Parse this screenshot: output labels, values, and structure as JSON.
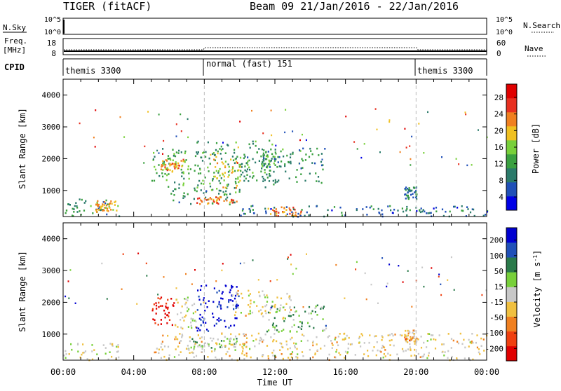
{
  "header": {
    "title": "TIGER (fitACF)",
    "beam_info": "Beam 09  21/Jan/2016 - 22/Jan/2016"
  },
  "panels": {
    "nsky": {
      "label": "N.Sky",
      "left_ticks": [
        "10^5",
        "10^0"
      ],
      "right_ticks": [
        "10^5",
        "10^0"
      ],
      "right_label": "N.Search"
    },
    "freq": {
      "label_line1": "Freq.",
      "label_line2": "[MHz]",
      "left_ticks": [
        "18",
        "8"
      ],
      "right_ticks": [
        "60",
        "0"
      ],
      "right_label": "Nave"
    },
    "cpid": {
      "label": "CPID",
      "segments": [
        {
          "text": "themis 3300"
        },
        {
          "text": "normal (fast) 151"
        },
        {
          "text": "themis 3300"
        }
      ]
    }
  },
  "colors": {
    "power": [
      "#0000e6",
      "#2050b8",
      "#2a7a6a",
      "#3aa040",
      "#78d03a",
      "#f0c020",
      "#f08020",
      "#e83020",
      "#e00000"
    ],
    "velocity": [
      "#e00000",
      "#f04010",
      "#f08020",
      "#f0c040",
      "#c8c8c8",
      "#78d03a",
      "#2a7a4a",
      "#2050b8",
      "#0000d0"
    ]
  },
  "chart_data": [
    {
      "type": "heatmap",
      "name": "Power",
      "ylabel": "Slant Range [km]",
      "xlabel": "",
      "ylim": [
        180,
        4500
      ],
      "yticks": [
        1000,
        2000,
        3000,
        4000
      ],
      "xlim": [
        0,
        24
      ],
      "x_tick_labels": [
        "00:00",
        "04:00",
        "08:00",
        "12:00",
        "16:00",
        "20:00",
        "00:00"
      ],
      "colorbar": {
        "label": "Power [dB]",
        "ticks": [
          "28",
          "24",
          "20",
          "16",
          "12",
          "8",
          "4"
        ],
        "range": [
          0,
          30
        ]
      },
      "features": [
        {
          "t_start": 0.0,
          "t_end": 3.2,
          "range_low": 200,
          "range_high": 750,
          "value": 10
        },
        {
          "t_start": 1.8,
          "t_end": 3.0,
          "range_low": 350,
          "range_high": 700,
          "value": 19
        },
        {
          "t_start": 5.0,
          "t_end": 7.2,
          "range_low": 1100,
          "range_high": 2350,
          "value": 12
        },
        {
          "t_start": 5.5,
          "t_end": 6.8,
          "range_low": 1600,
          "range_high": 2000,
          "value": 20
        },
        {
          "t_start": 6.0,
          "t_end": 10.0,
          "range_low": 550,
          "range_high": 1100,
          "value": 10
        },
        {
          "t_start": 7.5,
          "t_end": 9.8,
          "range_low": 600,
          "range_high": 850,
          "value": 22
        },
        {
          "t_start": 7.4,
          "t_end": 12.0,
          "range_low": 1100,
          "range_high": 2600,
          "value": 11
        },
        {
          "t_start": 8.5,
          "t_end": 10.0,
          "range_low": 1100,
          "range_high": 2100,
          "value": 18
        },
        {
          "t_start": 10.2,
          "t_end": 14.8,
          "range_low": 1250,
          "range_high": 2350,
          "value": 10
        },
        {
          "t_start": 11.5,
          "t_end": 13.5,
          "range_low": 200,
          "range_high": 500,
          "value": 22
        },
        {
          "t_start": 10.0,
          "t_end": 24.0,
          "range_low": 200,
          "range_high": 550,
          "value": 7
        },
        {
          "t_start": 19.3,
          "t_end": 20.0,
          "range_low": 750,
          "range_high": 1150,
          "value": 8
        }
      ]
    },
    {
      "type": "heatmap",
      "name": "Velocity",
      "ylabel": "Slant Range [km]",
      "xlabel": "Time UT",
      "ylim": [
        180,
        4500
      ],
      "yticks": [
        1000,
        2000,
        3000,
        4000
      ],
      "xlim": [
        0,
        24
      ],
      "x_tick_labels": [
        "00:00",
        "04:00",
        "08:00",
        "12:00",
        "16:00",
        "20:00",
        "00:00"
      ],
      "colorbar": {
        "label": "Velocity [m s^-1]",
        "ticks": [
          "200",
          "100",
          "50",
          "15",
          "-15",
          "-50",
          "-100",
          "-200"
        ],
        "range": [
          -250,
          250
        ]
      },
      "features": [
        {
          "t_start": 0.0,
          "t_end": 3.2,
          "range_low": 200,
          "range_high": 750,
          "value": 0
        },
        {
          "t_start": 5.0,
          "t_end": 6.3,
          "range_low": 1300,
          "range_high": 2200,
          "value": -230
        },
        {
          "t_start": 6.3,
          "t_end": 7.5,
          "range_low": 1200,
          "range_high": 2200,
          "value": 0
        },
        {
          "t_start": 7.5,
          "t_end": 10.0,
          "range_low": 1100,
          "range_high": 2600,
          "value": 230
        },
        {
          "t_start": 7.0,
          "t_end": 10.0,
          "range_low": 550,
          "range_high": 900,
          "value": 60
        },
        {
          "t_start": 9.5,
          "t_end": 13.0,
          "range_low": 1500,
          "range_high": 2400,
          "value": -20
        },
        {
          "t_start": 11.5,
          "t_end": 15.0,
          "range_low": 1100,
          "range_high": 2000,
          "value": 70
        },
        {
          "t_start": 5.0,
          "t_end": 24.0,
          "range_low": 200,
          "range_high": 1050,
          "value": -30
        },
        {
          "t_start": 19.3,
          "t_end": 20.0,
          "range_low": 750,
          "range_high": 1150,
          "value": -80
        }
      ]
    }
  ]
}
